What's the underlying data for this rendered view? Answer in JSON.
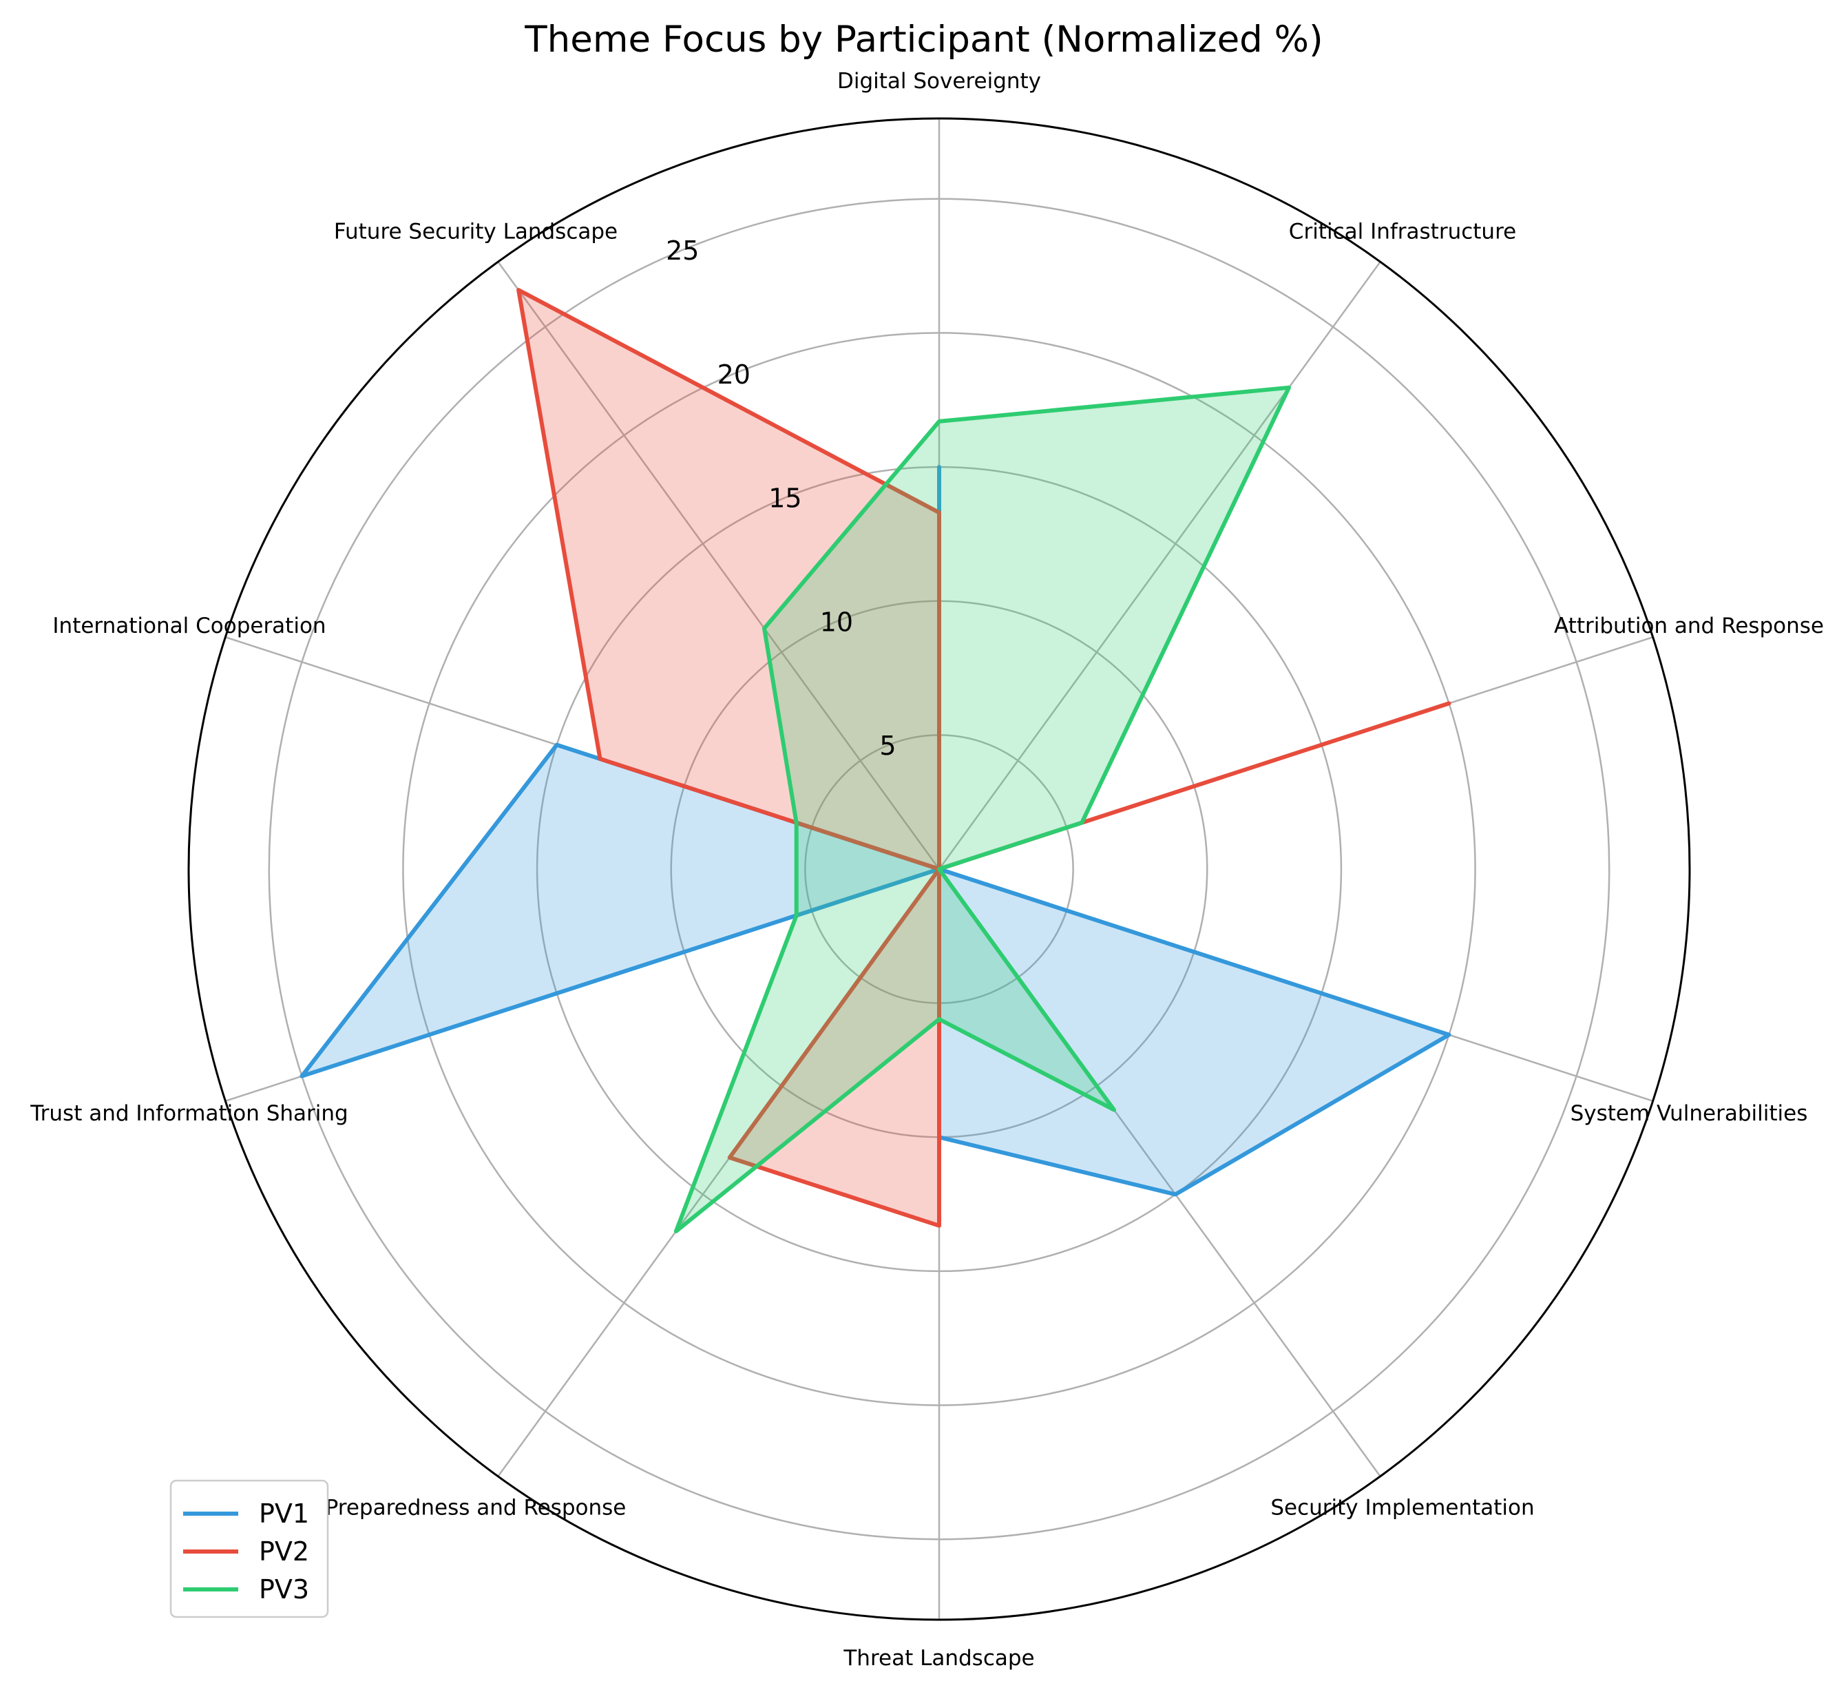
{
  "chart_data": {
    "type": "radar",
    "title": "Theme Focus by Participant (Normalized %)",
    "categories": [
      "Digital Sovereignty",
      "Critical Infrastructure",
      "Attribution and Response",
      "System Vulnerabilities",
      "Security Implementation",
      "Threat Landscape",
      "Preparedness and Response",
      "Trust and Information Sharing",
      "International Cooperation",
      "Future Security Landscape"
    ],
    "series": [
      {
        "name": "PV1",
        "color": "#3498db",
        "values": [
          15,
          0,
          0,
          20,
          15,
          10,
          0,
          25,
          15,
          0
        ]
      },
      {
        "name": "PV2",
        "color": "#e74c3c",
        "values": [
          13.3,
          0,
          20,
          0,
          0,
          13.3,
          13.3,
          0,
          13.3,
          26.7
        ]
      },
      {
        "name": "PV3",
        "color": "#2ecc71",
        "values": [
          16.7,
          22.2,
          5.6,
          0,
          11.1,
          5.6,
          16.7,
          5.6,
          5.6,
          11.1
        ]
      }
    ],
    "rticks": [
      5,
      10,
      15,
      20,
      25
    ],
    "rlim": [
      0,
      28
    ],
    "grid": true,
    "legend_position": "lower-left"
  }
}
